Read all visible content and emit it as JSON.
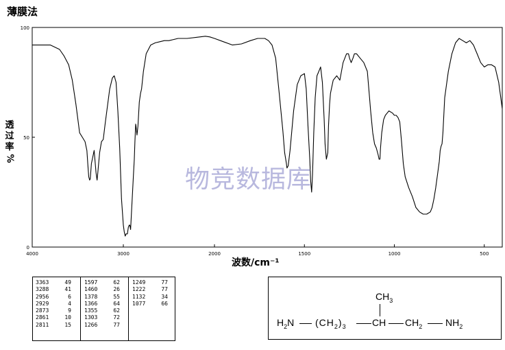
{
  "page_title": "薄膜法",
  "watermark": "物竞数据库",
  "chart_data": {
    "type": "line",
    "title": "薄膜法",
    "xlabel": "波数/cm⁻¹",
    "ylabel": "透过率%",
    "xlim": [
      4000,
      400
    ],
    "ylim": [
      0,
      100
    ],
    "x_ticks": [
      "4000",
      "3000",
      "2000",
      "1500",
      "1000",
      "500"
    ],
    "y_ticks": [
      "100",
      "50",
      "0"
    ],
    "grid": false,
    "color": "#000000",
    "series": [
      {
        "x": [
          4000,
          3900,
          3800,
          3700,
          3650,
          3600,
          3560,
          3520,
          3480,
          3450,
          3420,
          3400,
          3390,
          3380,
          3370,
          3363,
          3350,
          3320,
          3300,
          3290,
          3288,
          3280,
          3260,
          3240,
          3220,
          3200,
          3150,
          3120,
          3100,
          3080,
          3060,
          3040,
          3020,
          3000,
          2990,
          2980,
          2970,
          2956,
          2945,
          2935,
          2929,
          2920,
          2905,
          2890,
          2880,
          2873,
          2865,
          2861,
          2850,
          2840,
          2825,
          2811,
          2800,
          2780,
          2750,
          2700,
          2650,
          2600,
          2550,
          2500,
          2450,
          2400,
          2300,
          2200,
          2100,
          2050,
          2000,
          1950,
          1900,
          1850,
          1800,
          1760,
          1720,
          1700,
          1680,
          1660,
          1640,
          1620,
          1610,
          1600,
          1597,
          1590,
          1580,
          1560,
          1540,
          1520,
          1500,
          1490,
          1480,
          1470,
          1465,
          1460,
          1455,
          1448,
          1440,
          1430,
          1420,
          1410,
          1400,
          1390,
          1385,
          1378,
          1370,
          1366,
          1360,
          1355,
          1350,
          1340,
          1320,
          1303,
          1285,
          1266,
          1255,
          1249,
          1240,
          1230,
          1222,
          1210,
          1190,
          1170,
          1150,
          1140,
          1132,
          1120,
          1110,
          1100,
          1090,
          1085,
          1080,
          1077,
          1070,
          1060,
          1050,
          1040,
          1030,
          1010,
          1000,
          990,
          980,
          970,
          960,
          950,
          940,
          920,
          900,
          880,
          860,
          840,
          820,
          800,
          790,
          780,
          770,
          760,
          750,
          745,
          740,
          735,
          730,
          720,
          700,
          680,
          660,
          640,
          620,
          600,
          580,
          570,
          560,
          550,
          540,
          520,
          500,
          480,
          460,
          440,
          420,
          400
        ],
        "y": [
          92,
          92,
          92,
          90,
          87,
          83,
          76,
          65,
          52,
          50,
          48,
          44,
          38,
          32,
          30.5,
          31,
          38,
          44,
          34,
          31,
          30.5,
          34,
          43,
          48,
          49,
          56,
          72,
          77,
          78,
          75,
          62,
          45,
          22,
          10,
          7,
          5,
          6,
          6,
          9,
          10,
          10,
          8,
          20,
          32,
          40,
          48,
          56,
          55,
          51,
          55,
          66,
          70,
          72,
          80,
          88,
          92,
          93,
          93.5,
          94,
          94,
          94.5,
          95,
          95,
          95.5,
          96,
          95.7,
          95,
          93.5,
          92,
          92.5,
          94,
          95,
          95,
          94,
          92,
          86,
          70,
          53,
          43,
          38,
          36,
          37,
          44,
          62,
          74,
          78,
          79,
          72,
          55,
          40,
          30,
          25,
          33,
          52,
          68,
          78,
          80,
          82,
          75,
          58,
          47,
          40,
          43,
          55,
          65,
          70,
          72,
          76,
          78,
          76,
          84,
          88,
          88,
          86,
          84,
          86,
          88,
          88,
          86,
          84,
          80,
          70,
          62,
          52,
          47,
          45,
          42,
          40,
          40,
          45,
          52,
          58,
          60,
          61,
          62,
          61,
          60,
          60,
          59,
          57,
          48,
          38,
          32,
          27,
          23,
          18,
          16,
          15,
          15,
          16,
          18,
          22,
          27,
          33,
          39,
          44,
          46,
          47,
          52,
          68,
          80,
          88,
          93,
          95,
          94,
          93,
          94,
          93,
          92,
          90,
          88,
          84,
          82,
          83,
          83,
          82,
          75,
          63
        ]
      }
    ],
    "peaks": [
      {
        "wavenumber": 3363,
        "transmittance": 49
      },
      {
        "wavenumber": 3288,
        "transmittance": 41
      },
      {
        "wavenumber": 2956,
        "transmittance": 6
      },
      {
        "wavenumber": 2929,
        "transmittance": 4
      },
      {
        "wavenumber": 2873,
        "transmittance": 9
      },
      {
        "wavenumber": 2861,
        "transmittance": 10
      },
      {
        "wavenumber": 2811,
        "transmittance": 15
      },
      {
        "wavenumber": 1597,
        "transmittance": 62
      },
      {
        "wavenumber": 1460,
        "transmittance": 26
      },
      {
        "wavenumber": 1378,
        "transmittance": 55
      },
      {
        "wavenumber": 1366,
        "transmittance": 64
      },
      {
        "wavenumber": 1355,
        "transmittance": 62
      },
      {
        "wavenumber": 1303,
        "transmittance": 72
      },
      {
        "wavenumber": 1266,
        "transmittance": 77
      },
      {
        "wavenumber": 1249,
        "transmittance": 77
      },
      {
        "wavenumber": 1222,
        "transmittance": 77
      },
      {
        "wavenumber": 1132,
        "transmittance": 34
      },
      {
        "wavenumber": 1077,
        "transmittance": 66
      }
    ]
  },
  "peak_table": {
    "col1": [
      [
        "3363",
        "49"
      ],
      [
        "3288",
        "41"
      ],
      [
        "2956",
        "6"
      ],
      [
        "2929",
        "4"
      ],
      [
        "2873",
        "9"
      ],
      [
        "2861",
        "10"
      ],
      [
        "2811",
        "15"
      ]
    ],
    "col2": [
      [
        "1597",
        "62"
      ],
      [
        "1460",
        "26"
      ],
      [
        "1378",
        "55"
      ],
      [
        "1366",
        "64"
      ],
      [
        "1355",
        "62"
      ],
      [
        "1303",
        "72"
      ],
      [
        "1266",
        "77"
      ]
    ],
    "col3": [
      [
        "1249",
        "77"
      ],
      [
        "1222",
        "77"
      ],
      [
        "1132",
        "34"
      ],
      [
        "1077",
        "66"
      ]
    ]
  },
  "structure": {
    "methyl": "CH",
    "methyl_sub": "3",
    "left_amine": "H",
    "left_amine_sub": "2",
    "left_amine_n": "N",
    "chain_open": "(CH",
    "chain_sub": "2",
    "chain_close": ")",
    "chain_repeat": "3",
    "ch": "CH",
    "ch2": "CH",
    "ch2_sub": "2",
    "right_amine": "NH",
    "right_amine_sub": "2"
  }
}
